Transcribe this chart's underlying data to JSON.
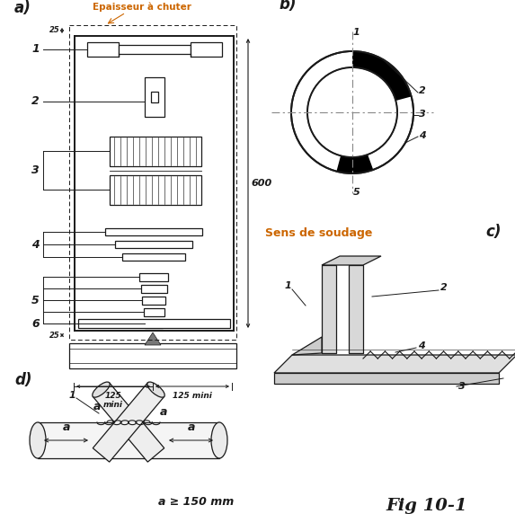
{
  "bg_color": "#ffffff",
  "lc": "#1a1a1a",
  "oc": "#cc6600",
  "fig_label": "Fig 10-1",
  "text_epaisseur": "Epaisseur à chuter",
  "text_sens": "Sens de soudage",
  "text_a_note": "a ≥ 150 mm",
  "label_a": "a)",
  "label_b": "b)",
  "label_c": "c)",
  "label_d": "d)"
}
